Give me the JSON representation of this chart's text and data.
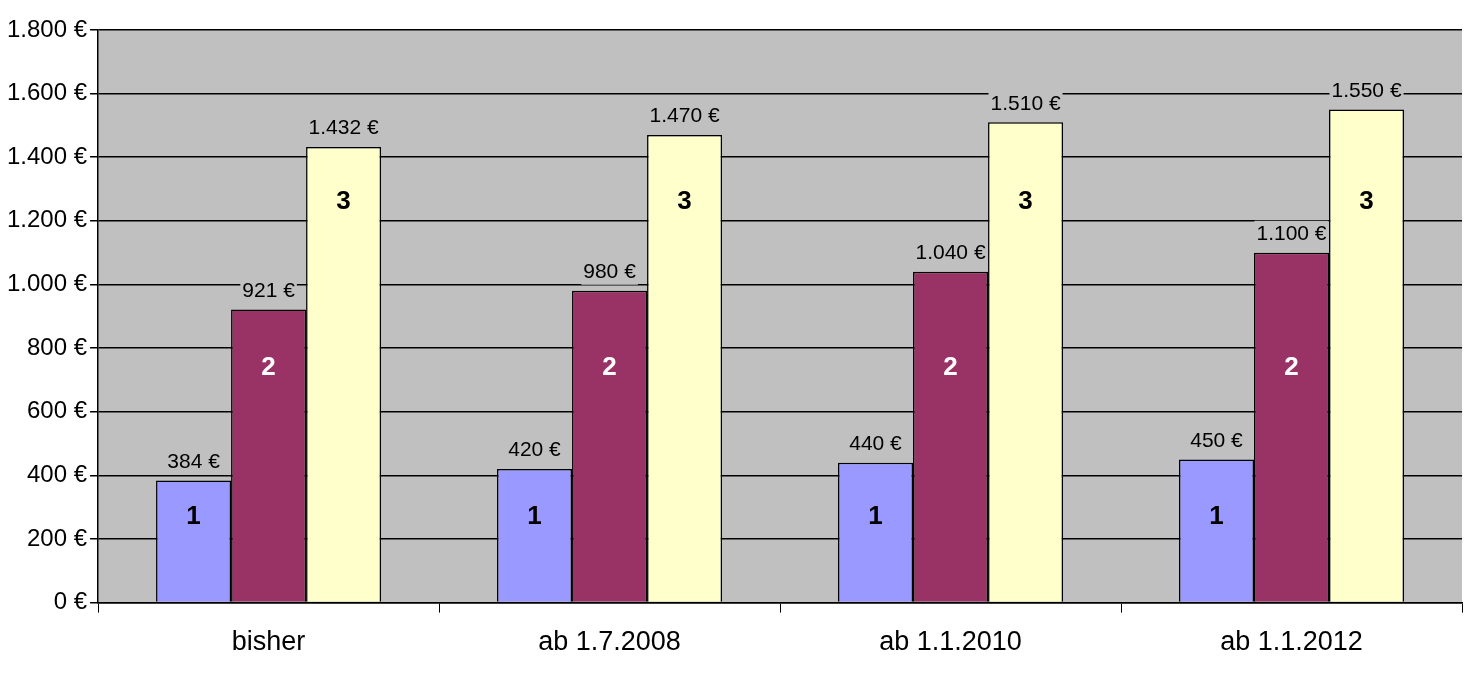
{
  "chart_data": {
    "type": "bar",
    "categories": [
      "bisher",
      "ab 1.7.2008",
      "ab 1.1.2010",
      "ab 1.1.2012"
    ],
    "series": [
      {
        "name": "1",
        "color": "#9999ff",
        "values": [
          384,
          420,
          440,
          450
        ],
        "value_labels": [
          "384 €",
          "420 €",
          "440 €",
          "450 €"
        ]
      },
      {
        "name": "2",
        "color": "#993366",
        "values": [
          921,
          980,
          1040,
          1100
        ],
        "value_labels": [
          "921 €",
          "980 €",
          "1.040 €",
          "1.100 €"
        ]
      },
      {
        "name": "3",
        "color": "#ffffcc",
        "values": [
          1432,
          1470,
          1510,
          1550
        ],
        "value_labels": [
          "1.432 €",
          "1.470 €",
          "1.510 €",
          "1.550 €"
        ]
      }
    ],
    "ylim": [
      0,
      1800
    ],
    "yticks": [
      {
        "value": 0,
        "label": "0 €"
      },
      {
        "value": 200,
        "label": "200 €"
      },
      {
        "value": 400,
        "label": "400 €"
      },
      {
        "value": 600,
        "label": "600 €"
      },
      {
        "value": 800,
        "label": "800 €"
      },
      {
        "value": 1000,
        "label": "1.000 €"
      },
      {
        "value": 1200,
        "label": "1.200 €"
      },
      {
        "value": 1400,
        "label": "1.400 €"
      },
      {
        "value": 1600,
        "label": "1.600 €"
      },
      {
        "value": 1800,
        "label": "1.800 €"
      }
    ],
    "grid": "y",
    "legend": false
  }
}
